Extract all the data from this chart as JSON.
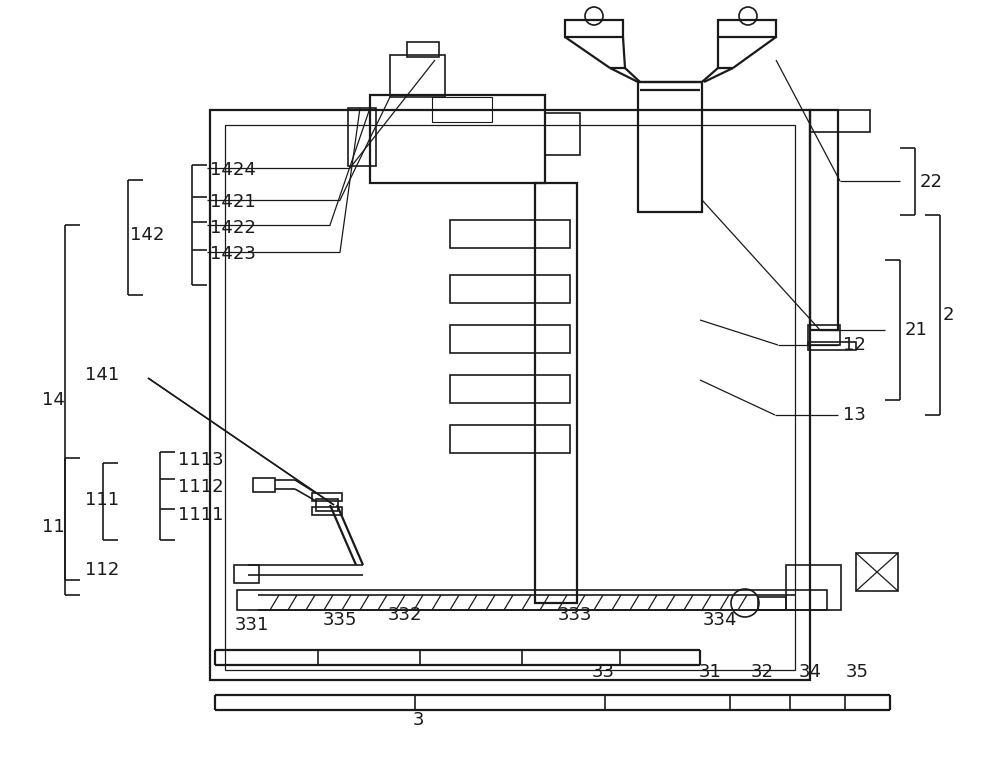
{
  "bg_color": "#ffffff",
  "line_color": "#1a1a1a",
  "lw": 1.2,
  "lw2": 1.6,
  "fs": 13
}
